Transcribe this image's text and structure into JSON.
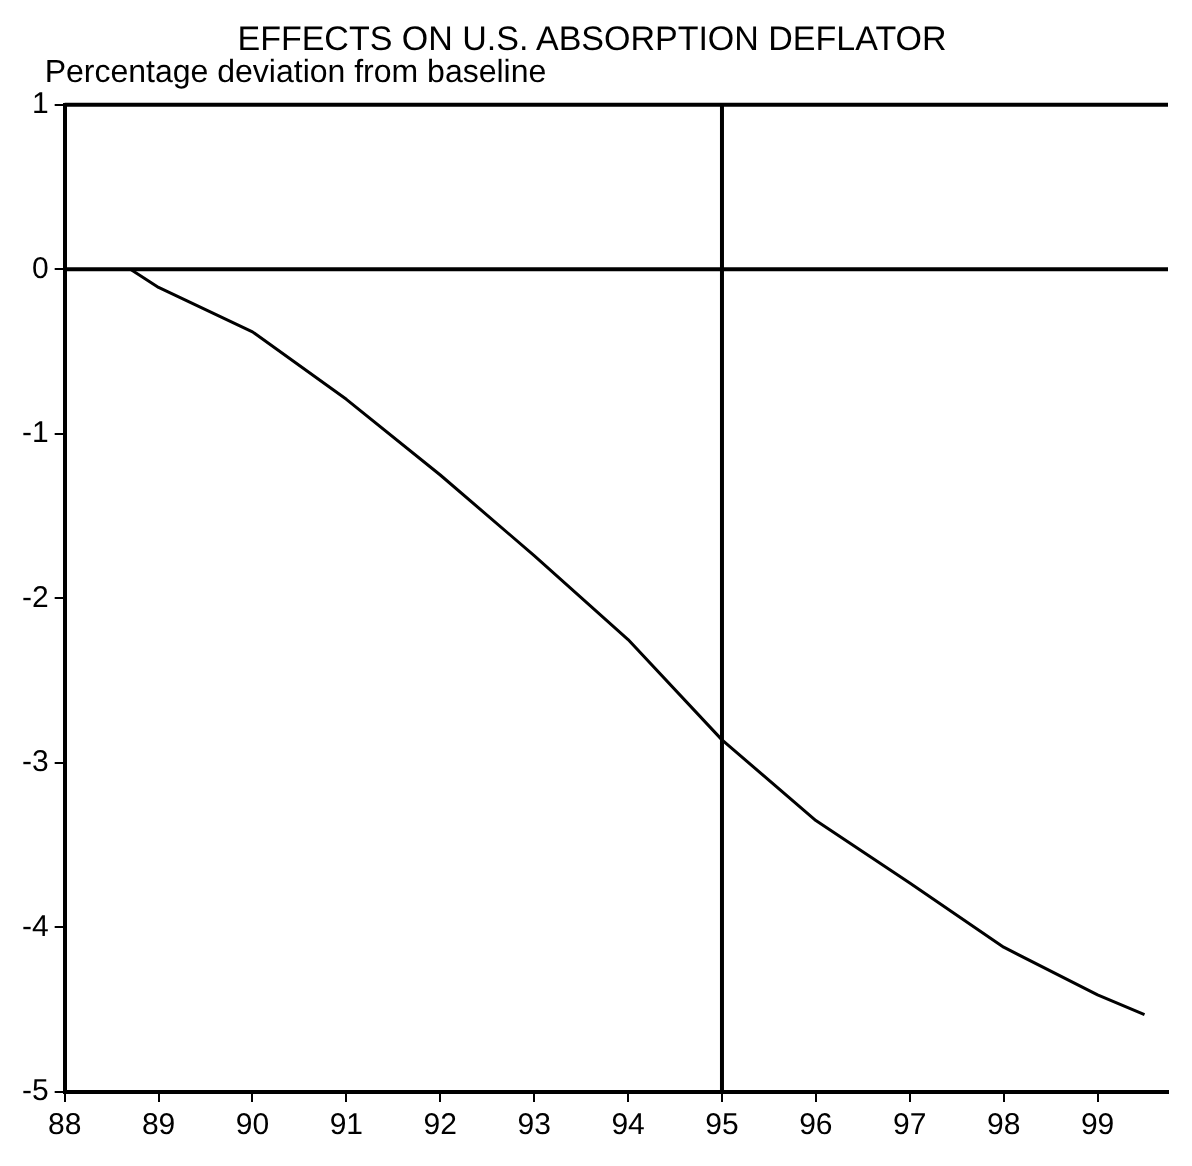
{
  "chart_data": {
    "type": "line",
    "title": "EFFECTS ON U.S. ABSORPTION DEFLATOR",
    "ylabel": "Percentage deviation from baseline",
    "x": [
      88.7,
      89,
      90,
      91,
      92,
      93,
      94,
      95,
      96,
      97,
      98,
      99,
      99.5
    ],
    "series": [
      {
        "color": "#000000",
        "values": [
          0,
          -0.11,
          -0.38,
          -0.79,
          -1.25,
          -1.74,
          -2.25,
          -2.86,
          -3.35,
          -3.73,
          -4.12,
          -4.41,
          -4.53
        ]
      }
    ],
    "xlim": [
      88,
      99.75
    ],
    "xticks": [
      88,
      89,
      90,
      91,
      92,
      93,
      94,
      95,
      96,
      97,
      98,
      99
    ],
    "ylim": [
      -5,
      1
    ],
    "yticks": [
      -5,
      -4,
      -3,
      -2,
      -1,
      0,
      1
    ],
    "ref_lines": [
      {
        "axis": "x",
        "value": 95,
        "color": "#000000"
      },
      {
        "axis": "y",
        "value": 0,
        "color": "#000000"
      }
    ],
    "grid": false,
    "legend": false,
    "marker": "none",
    "line_style": "solid"
  }
}
